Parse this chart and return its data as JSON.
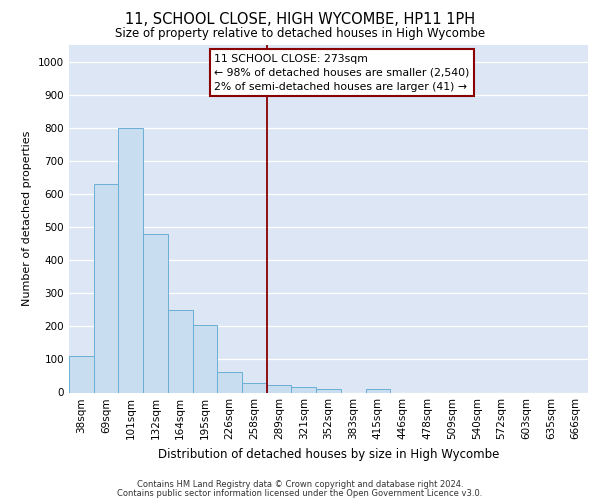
{
  "title": "11, SCHOOL CLOSE, HIGH WYCOMBE, HP11 1PH",
  "subtitle": "Size of property relative to detached houses in High Wycombe",
  "xlabel": "Distribution of detached houses by size in High Wycombe",
  "ylabel": "Number of detached properties",
  "footer1": "Contains HM Land Registry data © Crown copyright and database right 2024.",
  "footer2": "Contains public sector information licensed under the Open Government Licence v3.0.",
  "categories": [
    "38sqm",
    "69sqm",
    "101sqm",
    "132sqm",
    "164sqm",
    "195sqm",
    "226sqm",
    "258sqm",
    "289sqm",
    "321sqm",
    "352sqm",
    "383sqm",
    "415sqm",
    "446sqm",
    "478sqm",
    "509sqm",
    "540sqm",
    "572sqm",
    "603sqm",
    "635sqm",
    "666sqm"
  ],
  "values": [
    110,
    630,
    800,
    480,
    250,
    205,
    63,
    28,
    22,
    17,
    10,
    0,
    10,
    0,
    0,
    0,
    0,
    0,
    0,
    0,
    0
  ],
  "bar_color": "#c8ddf0",
  "bar_edge_color": "#6baed6",
  "vline_x_idx": 8,
  "vline_color": "#8b0000",
  "annotation_text": "11 SCHOOL CLOSE: 273sqm\n← 98% of detached houses are smaller (2,540)\n2% of semi-detached houses are larger (41) →",
  "annotation_box_facecolor": "#ffffff",
  "annotation_box_edgecolor": "#8b0000",
  "ylim": [
    0,
    1050
  ],
  "yticks": [
    0,
    100,
    200,
    300,
    400,
    500,
    600,
    700,
    800,
    900,
    1000
  ],
  "background_color": "#dce6f5",
  "grid_color": "#ffffff",
  "title_fontsize": 10.5,
  "subtitle_fontsize": 8.5,
  "ylabel_fontsize": 8,
  "xlabel_fontsize": 8.5,
  "tick_fontsize": 7.5,
  "footer_fontsize": 6.0
}
